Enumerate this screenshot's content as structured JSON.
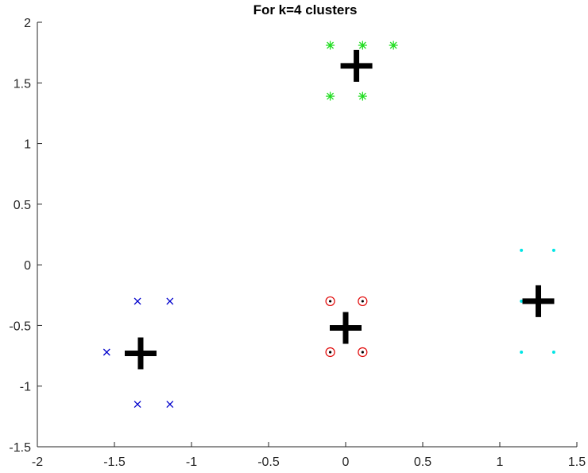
{
  "chart_data": {
    "type": "scatter",
    "title": "For k=4 clusters",
    "xlabel": "",
    "ylabel": "",
    "xlim": [
      -2,
      1.5
    ],
    "ylim": [
      -1.5,
      2
    ],
    "xticks": [
      -2,
      -1.5,
      -1,
      -0.5,
      0,
      0.5,
      1,
      1.5
    ],
    "yticks": [
      -1.5,
      -1,
      -0.5,
      0,
      0.5,
      1,
      1.5,
      2
    ],
    "xtick_labels": [
      "-2",
      "-1.5",
      "-1",
      "-0.5",
      "0",
      "0.5",
      "1",
      "1.5"
    ],
    "ytick_labels": [
      "-1.5",
      "-1",
      "-0.5",
      "0",
      "0.5",
      "1",
      "1.5",
      "2"
    ],
    "grid": false,
    "series": [
      {
        "marker": "x",
        "color": "#0000cc",
        "points": [
          [
            -1.35,
            -0.3
          ],
          [
            -1.14,
            -0.3
          ],
          [
            -1.55,
            -0.72
          ],
          [
            -1.35,
            -1.15
          ],
          [
            -1.14,
            -1.15
          ]
        ]
      },
      {
        "marker": "circle-dot",
        "color": "#e00000",
        "points": [
          [
            -0.1,
            -0.3
          ],
          [
            0.11,
            -0.3
          ],
          [
            -0.1,
            -0.72
          ],
          [
            0.11,
            -0.72
          ]
        ]
      },
      {
        "marker": "dot",
        "color": "#00e5e5",
        "points": [
          [
            1.14,
            0.12
          ],
          [
            1.35,
            0.12
          ],
          [
            1.14,
            -0.3
          ],
          [
            1.14,
            -0.72
          ],
          [
            1.35,
            -0.72
          ]
        ]
      },
      {
        "marker": "asterisk",
        "color": "#22dd22",
        "points": [
          [
            -0.1,
            1.81
          ],
          [
            0.11,
            1.81
          ],
          [
            0.31,
            1.81
          ],
          [
            -0.1,
            1.39
          ],
          [
            0.11,
            1.39
          ]
        ]
      }
    ],
    "centroids": {
      "marker": "plus",
      "color": "#000000",
      "points": [
        [
          -1.33,
          -0.73
        ],
        [
          0.0,
          -0.52
        ],
        [
          1.25,
          -0.3
        ],
        [
          0.07,
          1.64
        ]
      ]
    }
  }
}
